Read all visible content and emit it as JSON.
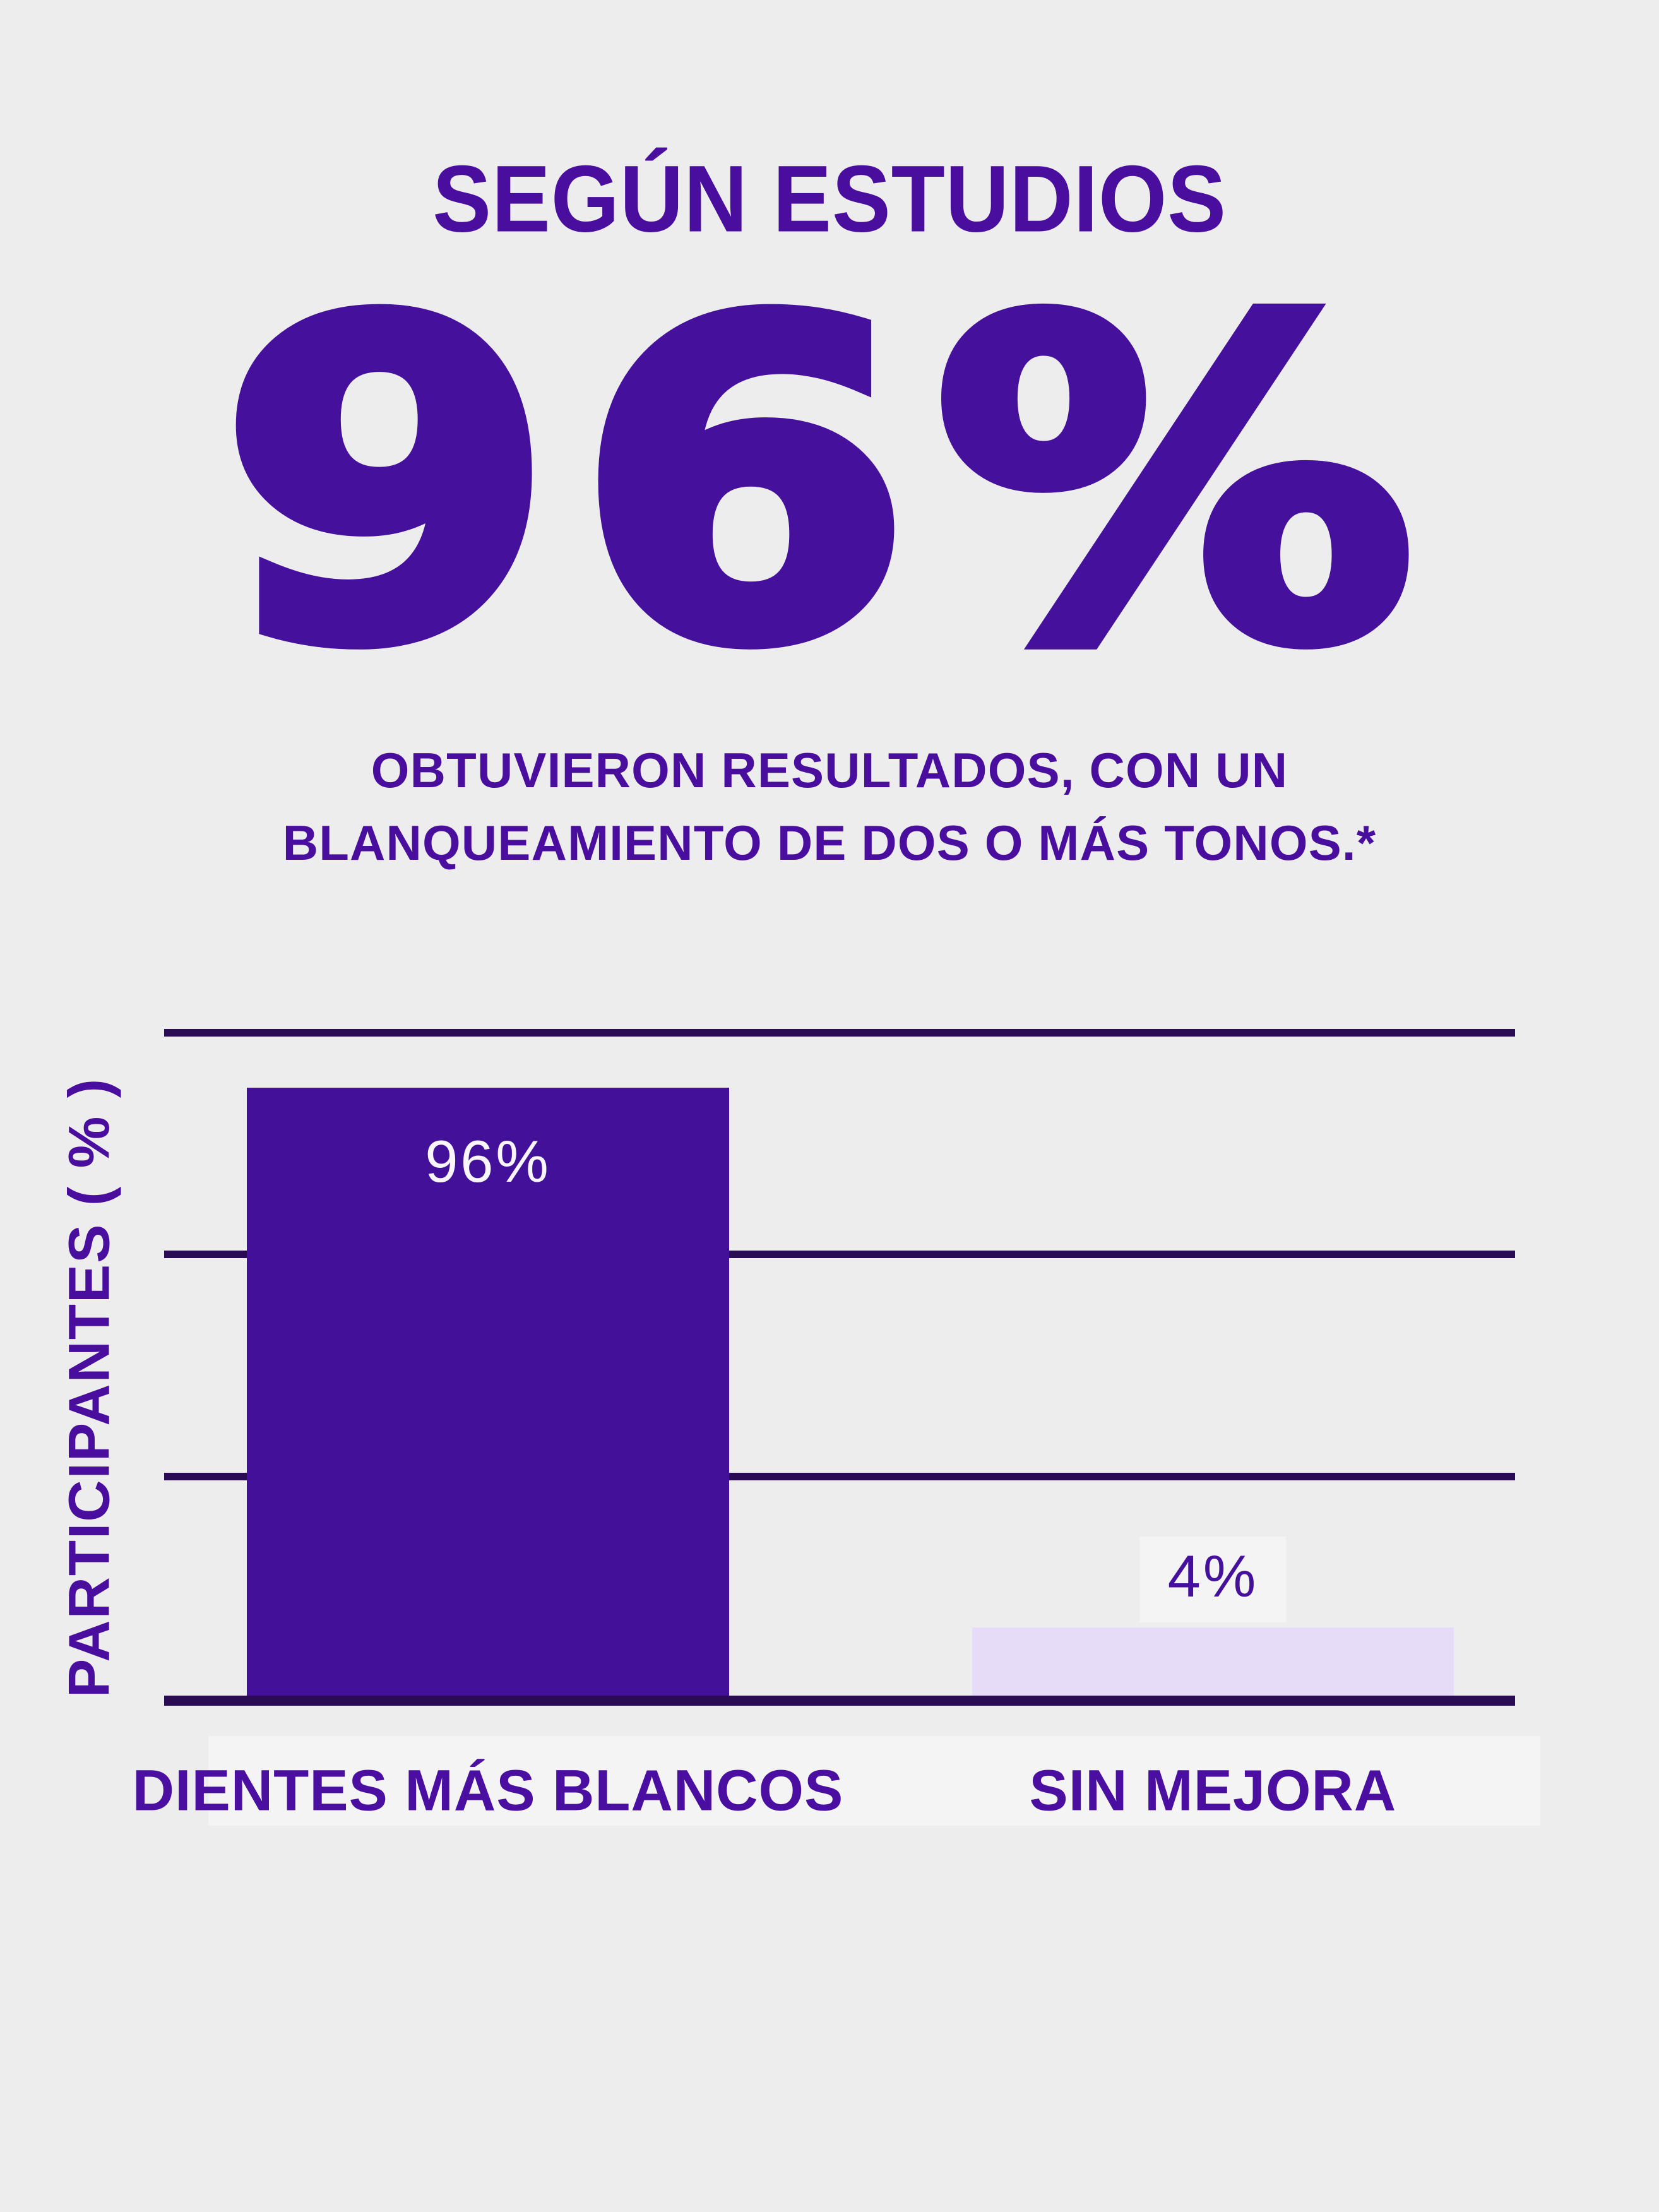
{
  "page": {
    "background_color": "#eeedee",
    "accent_purple": "#4a0e9e",
    "grid_color": "#2a0c55"
  },
  "header": {
    "kicker": "SEGÚN ESTUDIOS",
    "headline_stat": "96%",
    "subtitle_line1": "OBTUVIERON RESULTADOS, CON UN",
    "subtitle_line2": "BLANQUEAMIENTO DE DOS O MÁS TONOS.*"
  },
  "chart_data": {
    "type": "bar",
    "title": "",
    "categories": [
      "DIENTES MÁS BLANCOS",
      "SIN MEJORA"
    ],
    "values": [
      96,
      4
    ],
    "value_labels": [
      "96%",
      "4%"
    ],
    "xlabel": "",
    "ylabel": "PARTICIPANTES ( % )",
    "ylim": [
      0,
      105
    ],
    "y_tick_labels_shown": false,
    "grid": "horizontal",
    "gridline_count": 4,
    "legend_position": "none",
    "bars": [
      {
        "category": "DIENTES MÁS BLANCOS",
        "value": 96,
        "value_label": "96%",
        "color": "#431199",
        "value_label_color": "#f8f5fd",
        "value_label_position": "inside-top",
        "display_height_pct": 91.2,
        "left_pct": 6.12,
        "width_pct": 35.7,
        "center_pct": 23.97
      },
      {
        "category": "SIN MEJORA",
        "value": 4,
        "value_label": "4%",
        "color": "#e7dcf8",
        "value_label_color": "#45109c",
        "value_label_position": "above",
        "display_height_pct": 10.2,
        "left_pct": 59.81,
        "width_pct": 35.65,
        "center_pct": 77.63
      }
    ]
  }
}
